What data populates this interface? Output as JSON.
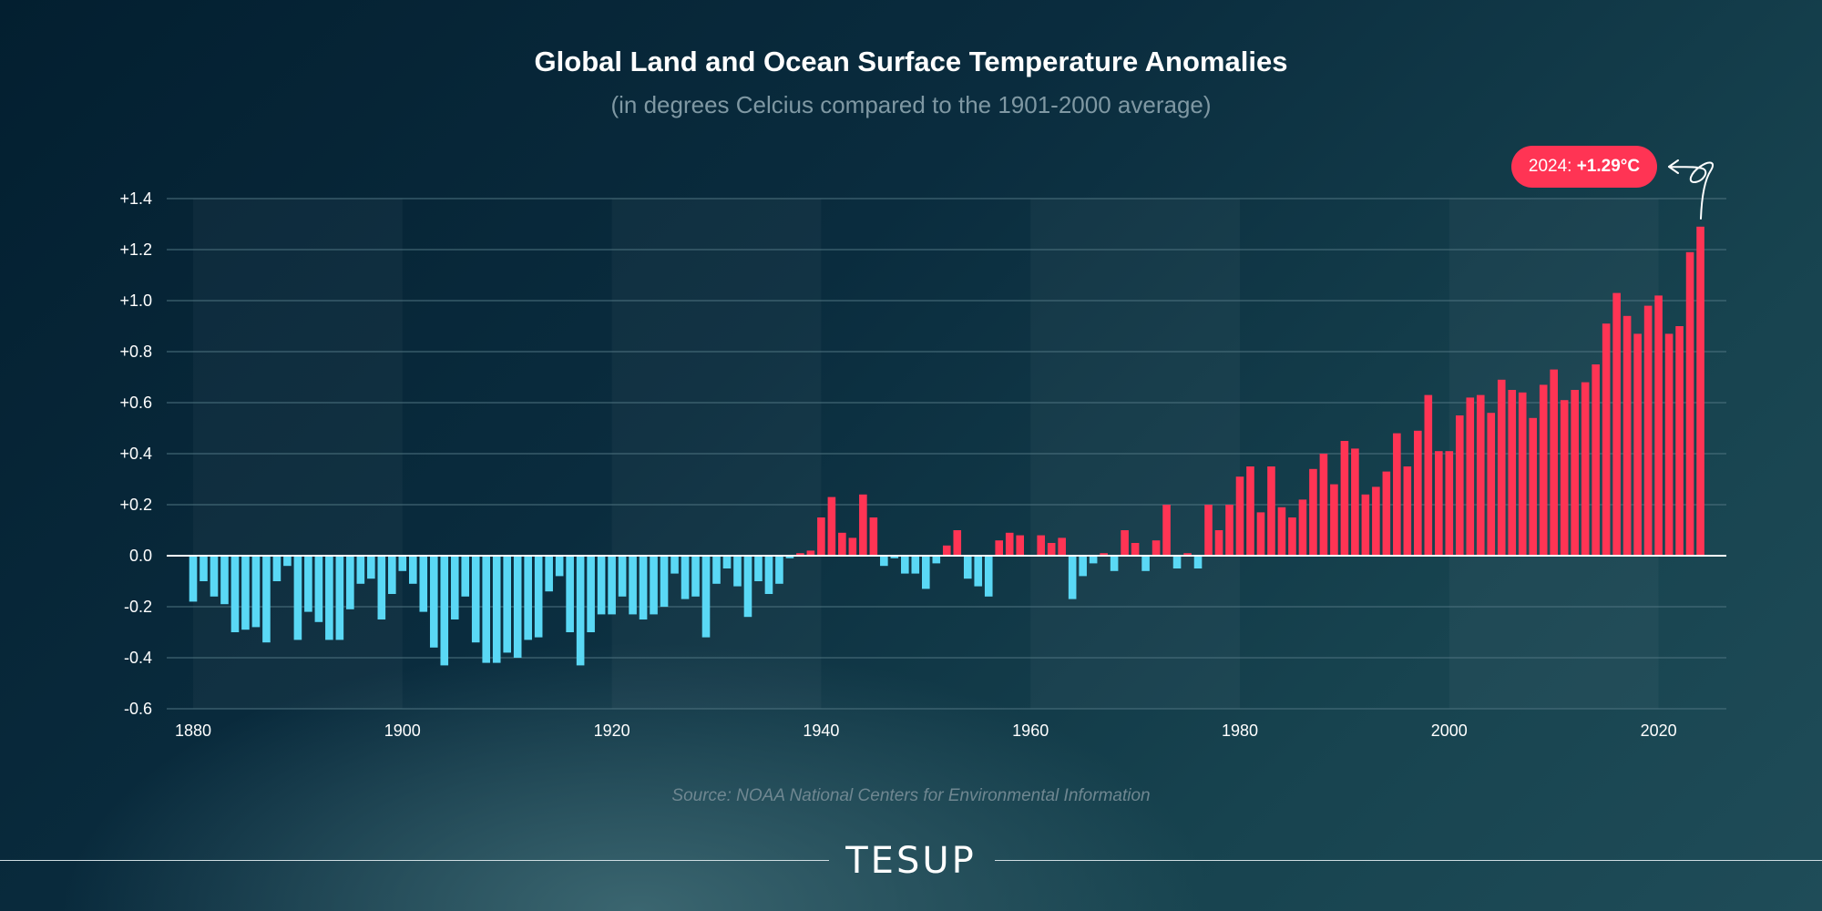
{
  "title": "Global Land and Ocean Surface Temperature Anomalies",
  "subtitle": "(in degrees Celcius compared to the 1901-2000 average)",
  "source": "Source: NOAA National Centers for Environmental Information",
  "logo": "TESUP",
  "callout": {
    "label": "2024:",
    "value": "+1.29°C"
  },
  "colors": {
    "positive": "#ff3454",
    "negative": "#5ad8f5",
    "grid": "#4e7380",
    "zero": "#ffffff",
    "text": "#ffffff"
  },
  "chart_data": {
    "type": "bar",
    "title": "Global Land and Ocean Surface Temperature Anomalies",
    "subtitle": "(in degrees Celcius compared to the 1901-2000 average)",
    "xlabel": "",
    "ylabel": "",
    "grid": true,
    "xlim": [
      1880,
      2024
    ],
    "ylim": [
      -0.6,
      1.4
    ],
    "y_ticks": [
      1.4,
      1.2,
      1.0,
      0.8,
      0.6,
      0.4,
      0.2,
      0.0,
      -0.2,
      -0.4,
      -0.6
    ],
    "y_tick_labels": [
      "+1.4",
      "+1.2",
      "+1.0",
      "+0.8",
      "+0.6",
      "+0.4",
      "+0.2",
      "0.0",
      "-0.2",
      "-0.4",
      "-0.6"
    ],
    "x_ticks": [
      1880,
      1900,
      1920,
      1940,
      1960,
      1980,
      2000,
      2020
    ],
    "x_tick_labels": [
      "1880",
      "1900",
      "1920",
      "1940",
      "1960",
      "1980",
      "2000",
      "2020"
    ],
    "years": [
      1880,
      1881,
      1882,
      1883,
      1884,
      1885,
      1886,
      1887,
      1888,
      1889,
      1890,
      1891,
      1892,
      1893,
      1894,
      1895,
      1896,
      1897,
      1898,
      1899,
      1900,
      1901,
      1902,
      1903,
      1904,
      1905,
      1906,
      1907,
      1908,
      1909,
      1910,
      1911,
      1912,
      1913,
      1914,
      1915,
      1916,
      1917,
      1918,
      1919,
      1920,
      1921,
      1922,
      1923,
      1924,
      1925,
      1926,
      1927,
      1928,
      1929,
      1930,
      1931,
      1932,
      1933,
      1934,
      1935,
      1936,
      1937,
      1938,
      1939,
      1940,
      1941,
      1942,
      1943,
      1944,
      1945,
      1946,
      1947,
      1948,
      1949,
      1950,
      1951,
      1952,
      1953,
      1954,
      1955,
      1956,
      1957,
      1958,
      1959,
      1960,
      1961,
      1962,
      1963,
      1964,
      1965,
      1966,
      1967,
      1968,
      1969,
      1970,
      1971,
      1972,
      1973,
      1974,
      1975,
      1976,
      1977,
      1978,
      1979,
      1980,
      1981,
      1982,
      1983,
      1984,
      1985,
      1986,
      1987,
      1988,
      1989,
      1990,
      1991,
      1992,
      1993,
      1994,
      1995,
      1996,
      1997,
      1998,
      1999,
      2000,
      2001,
      2002,
      2003,
      2004,
      2005,
      2006,
      2007,
      2008,
      2009,
      2010,
      2011,
      2012,
      2013,
      2014,
      2015,
      2016,
      2017,
      2018,
      2019,
      2020,
      2021,
      2022,
      2023,
      2024
    ],
    "values": [
      -0.18,
      -0.1,
      -0.16,
      -0.19,
      -0.3,
      -0.29,
      -0.28,
      -0.34,
      -0.1,
      -0.04,
      -0.33,
      -0.22,
      -0.26,
      -0.33,
      -0.33,
      -0.21,
      -0.11,
      -0.09,
      -0.25,
      -0.15,
      -0.06,
      -0.11,
      -0.22,
      -0.36,
      -0.43,
      -0.25,
      -0.16,
      -0.34,
      -0.42,
      -0.42,
      -0.38,
      -0.4,
      -0.33,
      -0.32,
      -0.14,
      -0.08,
      -0.3,
      -0.43,
      -0.3,
      -0.23,
      -0.23,
      -0.16,
      -0.23,
      -0.25,
      -0.23,
      -0.2,
      -0.07,
      -0.17,
      -0.16,
      -0.32,
      -0.11,
      -0.05,
      -0.12,
      -0.24,
      -0.1,
      -0.15,
      -0.11,
      -0.01,
      0.01,
      0.02,
      0.15,
      0.23,
      0.09,
      0.07,
      0.24,
      0.15,
      -0.04,
      -0.01,
      -0.07,
      -0.07,
      -0.13,
      -0.03,
      0.04,
      0.1,
      -0.09,
      -0.12,
      -0.16,
      0.06,
      0.09,
      0.08,
      0.0,
      0.08,
      0.05,
      0.07,
      -0.17,
      -0.08,
      -0.03,
      0.01,
      -0.06,
      0.1,
      0.05,
      -0.06,
      0.06,
      0.2,
      -0.05,
      0.01,
      -0.05,
      0.2,
      0.1,
      0.2,
      0.31,
      0.35,
      0.17,
      0.35,
      0.19,
      0.15,
      0.22,
      0.34,
      0.4,
      0.28,
      0.45,
      0.42,
      0.24,
      0.27,
      0.33,
      0.48,
      0.35,
      0.49,
      0.63,
      0.41,
      0.41,
      0.55,
      0.62,
      0.63,
      0.56,
      0.69,
      0.65,
      0.64,
      0.54,
      0.67,
      0.73,
      0.61,
      0.65,
      0.68,
      0.75,
      0.91,
      1.03,
      0.94,
      0.87,
      0.98,
      1.02,
      0.87,
      0.9,
      1.19,
      1.29
    ]
  }
}
